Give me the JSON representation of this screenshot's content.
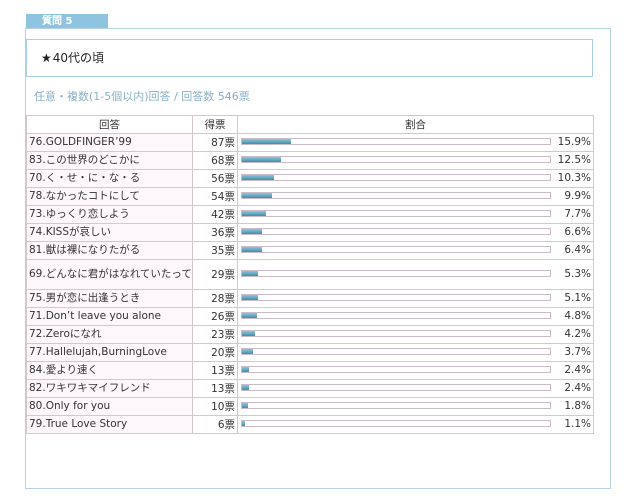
{
  "section": {
    "tab_label": "質問 5"
  },
  "question": {
    "star": "★",
    "text": "40代の頃"
  },
  "meta": {
    "text": "任意・複数(1-5個以内)回答 / 回答数 546票"
  },
  "table": {
    "headers": {
      "answer": "回答",
      "votes": "得票",
      "ratio": "割合"
    },
    "rows": [
      {
        "answer": "76.GOLDFINGER’99",
        "votes": "87票",
        "pct": "15.9%",
        "fraction": 0.159
      },
      {
        "answer": "83.この世界のどこかに",
        "votes": "68票",
        "pct": "12.5%",
        "fraction": 0.125
      },
      {
        "answer": "70.く・せ・に・な・る",
        "votes": "56票",
        "pct": "10.3%",
        "fraction": 0.103
      },
      {
        "answer": "78.なかったコトにして",
        "votes": "54票",
        "pct": "9.9%",
        "fraction": 0.099
      },
      {
        "answer": "73.ゆっくり恋しよう",
        "votes": "42票",
        "pct": "7.7%",
        "fraction": 0.077
      },
      {
        "answer": "74.KISSが哀しい",
        "votes": "36票",
        "pct": "6.6%",
        "fraction": 0.066
      },
      {
        "answer": "81.獣は裸になりたがる",
        "votes": "35票",
        "pct": "6.4%",
        "fraction": 0.064
      },
      {
        "answer": "69.どんなに君がはなれていたって",
        "votes": "29票",
        "pct": "5.3%",
        "fraction": 0.053,
        "tall": true
      },
      {
        "answer": "75.男が恋に出逢うとき",
        "votes": "28票",
        "pct": "5.1%",
        "fraction": 0.051
      },
      {
        "answer": "71.Don’t leave you alone",
        "votes": "26票",
        "pct": "4.8%",
        "fraction": 0.048
      },
      {
        "answer": "72.Zeroになれ",
        "votes": "23票",
        "pct": "4.2%",
        "fraction": 0.042
      },
      {
        "answer": "77.Hallelujah,BurningLove",
        "votes": "20票",
        "pct": "3.7%",
        "fraction": 0.037
      },
      {
        "answer": "84.愛より速く",
        "votes": "13票",
        "pct": "2.4%",
        "fraction": 0.024
      },
      {
        "answer": "82.ワキワキマイフレンド",
        "votes": "13票",
        "pct": "2.4%",
        "fraction": 0.024
      },
      {
        "answer": "80.Only for you",
        "votes": "10票",
        "pct": "1.8%",
        "fraction": 0.018
      },
      {
        "answer": "79.True Love Story",
        "votes": "6票",
        "pct": "1.1%",
        "fraction": 0.011
      }
    ]
  }
}
